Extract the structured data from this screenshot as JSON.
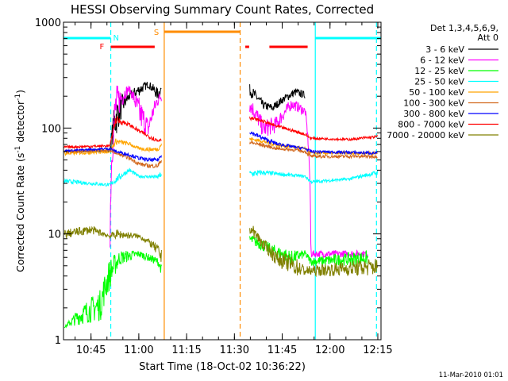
{
  "chart_data": {
    "type": "line",
    "title": "HESSI Observing Summary Count Rates, Corrected",
    "xlabel": "Start Time (18-Oct-02 10:36:22)",
    "ylabel_main": "Corrected Count Rate (s",
    "ylabel_sup1": "-1",
    "ylabel_mid": " detector",
    "ylabel_sup2": "-1",
    "ylabel_end": ")",
    "y_scale": "log",
    "ylim": [
      1,
      1000
    ],
    "xlim": [
      10.6061,
      12.2667
    ],
    "x_ticks": [
      {
        "t": 10.75,
        "label": "10:45"
      },
      {
        "t": 11.0,
        "label": "11:00"
      },
      {
        "t": 11.25,
        "label": "11:15"
      },
      {
        "t": 11.5,
        "label": "11:30"
      },
      {
        "t": 11.75,
        "label": "11:45"
      },
      {
        "t": 12.0,
        "label": "12:00"
      },
      {
        "t": 12.25,
        "label": "12:15"
      }
    ],
    "y_ticks": [
      {
        "v": 1,
        "label": "1"
      },
      {
        "v": 10,
        "label": "10"
      },
      {
        "v": 100,
        "label": "100"
      },
      {
        "v": 1000,
        "label": "1000"
      }
    ],
    "legend_title1": "Det 1,3,4,5,6,9,",
    "legend_title2": "Att 0",
    "series": [
      {
        "name": "3 - 6 keV",
        "color": "#000000",
        "values": [
          [
            10.61,
            [
              60,
              60
            ]
          ],
          [
            10.85,
            [
              60,
              60
            ]
          ],
          [
            10.88,
            [
              80,
              200
            ]
          ],
          [
            10.95,
            [
              180,
              220
            ]
          ],
          [
            11.0,
            [
              200,
              260
            ]
          ],
          [
            11.05,
            [
              240,
              280
            ]
          ],
          [
            11.1,
            [
              180,
              240
            ]
          ],
          [
            11.12,
            [
              220,
              260
            ]
          ],
          [
            11.58,
            [
              200,
              260
            ]
          ],
          [
            11.65,
            [
              150,
              180
            ]
          ],
          [
            11.7,
            [
              140,
              170
            ]
          ],
          [
            11.75,
            [
              170,
              200
            ]
          ],
          [
            11.82,
            [
              200,
              240
            ]
          ],
          [
            11.87,
            [
              190,
              220
            ]
          ]
        ]
      },
      {
        "name": "6 - 12 keV",
        "color": "#ff00ff",
        "values": [
          [
            10.85,
            [
              7,
              8
            ]
          ],
          [
            10.88,
            [
              100,
              260
            ]
          ],
          [
            10.95,
            [
              220,
              250
            ]
          ],
          [
            11.0,
            [
              100,
              200
            ]
          ],
          [
            11.05,
            [
              80,
              120
            ]
          ],
          [
            11.1,
            [
              160,
              220
            ]
          ],
          [
            11.12,
            [
              180,
              220
            ]
          ],
          [
            11.58,
            [
              140,
              200
            ]
          ],
          [
            11.65,
            [
              80,
              120
            ]
          ],
          [
            11.72,
            [
              90,
              130
            ]
          ],
          [
            11.8,
            [
              150,
              190
            ]
          ],
          [
            11.87,
            [
              130,
              160
            ]
          ],
          [
            11.9,
            [
              6,
              7
            ]
          ],
          [
            12.2,
            [
              6,
              7
            ]
          ]
        ]
      },
      {
        "name": "12 - 25 keV",
        "color": "#00ff00",
        "values": [
          [
            10.61,
            [
              1.3,
              1.3
            ]
          ],
          [
            10.8,
            [
              1.5,
              3
            ]
          ],
          [
            10.85,
            [
              3,
              6
            ]
          ],
          [
            10.9,
            [
              5,
              7
            ]
          ],
          [
            11.0,
            [
              6,
              7
            ]
          ],
          [
            11.1,
            [
              5,
              6
            ]
          ],
          [
            11.12,
            [
              4,
              5
            ]
          ],
          [
            11.58,
            [
              8,
              10
            ]
          ],
          [
            11.7,
            [
              6,
              8
            ]
          ],
          [
            11.8,
            [
              5,
              7
            ]
          ],
          [
            11.87,
            [
              6,
              7
            ]
          ],
          [
            11.9,
            [
              5,
              6
            ]
          ],
          [
            12.2,
            [
              5,
              7
            ]
          ]
        ]
      },
      {
        "name": "25 - 50 keV",
        "color": "#00ffff",
        "values": [
          [
            10.61,
            [
              30,
              33
            ]
          ],
          [
            10.85,
            [
              28,
              30
            ]
          ],
          [
            10.88,
            [
              30,
              35
            ]
          ],
          [
            10.95,
            [
              38,
              42
            ]
          ],
          [
            11.0,
            [
              34,
              36
            ]
          ],
          [
            11.1,
            [
              33,
              36
            ]
          ],
          [
            11.12,
            [
              34,
              40
            ]
          ],
          [
            11.58,
            [
              34,
              40
            ]
          ],
          [
            11.65,
            [
              36,
              40
            ]
          ],
          [
            11.75,
            [
              35,
              38
            ]
          ],
          [
            11.87,
            [
              34,
              36
            ]
          ],
          [
            11.9,
            [
              30,
              32
            ]
          ],
          [
            12.1,
            [
              32,
              34
            ]
          ],
          [
            12.25,
            [
              36,
              40
            ]
          ]
        ]
      },
      {
        "name": "50 - 100 keV",
        "color": "#ffa500",
        "values": [
          [
            10.61,
            [
              55,
              60
            ]
          ],
          [
            10.85,
            [
              58,
              62
            ]
          ],
          [
            10.88,
            [
              70,
              80
            ]
          ],
          [
            10.95,
            [
              68,
              74
            ]
          ],
          [
            11.0,
            [
              62,
              66
            ]
          ],
          [
            11.05,
            [
              60,
              66
            ]
          ],
          [
            11.1,
            [
              60,
              66
            ]
          ],
          [
            11.12,
            [
              68,
              74
            ]
          ],
          [
            11.58,
            [
              76,
              82
            ]
          ],
          [
            11.65,
            [
              72,
              78
            ]
          ],
          [
            11.72,
            [
              66,
              72
            ]
          ],
          [
            11.82,
            [
              64,
              68
            ]
          ],
          [
            11.87,
            [
              62,
              66
            ]
          ],
          [
            11.9,
            [
              56,
              60
            ]
          ],
          [
            12.25,
            [
              56,
              60
            ]
          ]
        ]
      },
      {
        "name": "100 - 300 keV",
        "color": "#d2691e",
        "values": [
          [
            10.61,
            [
              58,
              62
            ]
          ],
          [
            10.85,
            [
              60,
              64
            ]
          ],
          [
            10.88,
            [
              56,
              60
            ]
          ],
          [
            10.95,
            [
              50,
              54
            ]
          ],
          [
            11.0,
            [
              44,
              48
            ]
          ],
          [
            11.05,
            [
              42,
              46
            ]
          ],
          [
            11.1,
            [
              42,
              46
            ]
          ],
          [
            11.12,
            [
              48,
              52
            ]
          ],
          [
            11.58,
            [
              70,
              76
            ]
          ],
          [
            11.65,
            [
              66,
              72
            ]
          ],
          [
            11.72,
            [
              62,
              66
            ]
          ],
          [
            11.82,
            [
              60,
              64
            ]
          ],
          [
            11.87,
            [
              58,
              62
            ]
          ],
          [
            11.9,
            [
              52,
              56
            ]
          ],
          [
            12.25,
            [
              52,
              56
            ]
          ]
        ]
      },
      {
        "name": "300 - 800 keV",
        "color": "#0000ff",
        "values": [
          [
            10.61,
            [
              60,
              62
            ]
          ],
          [
            10.85,
            [
              62,
              66
            ]
          ],
          [
            10.88,
            [
              58,
              62
            ]
          ],
          [
            10.95,
            [
              54,
              58
            ]
          ],
          [
            11.0,
            [
              50,
              54
            ]
          ],
          [
            11.05,
            [
              48,
              52
            ]
          ],
          [
            11.1,
            [
              48,
              52
            ]
          ],
          [
            11.12,
            [
              54,
              58
            ]
          ],
          [
            11.58,
            [
              88,
              96
            ]
          ],
          [
            11.65,
            [
              76,
              84
            ]
          ],
          [
            11.72,
            [
              68,
              74
            ]
          ],
          [
            11.82,
            [
              64,
              68
            ]
          ],
          [
            11.87,
            [
              62,
              66
            ]
          ],
          [
            11.9,
            [
              58,
              62
            ]
          ],
          [
            12.25,
            [
              56,
              60
            ]
          ]
        ]
      },
      {
        "name": "800 - 7000 keV",
        "color": "#ff0000",
        "values": [
          [
            10.61,
            [
              64,
              68
            ]
          ],
          [
            10.85,
            [
              66,
              70
            ]
          ],
          [
            10.88,
            [
              110,
              130
            ]
          ],
          [
            10.95,
            [
              104,
              112
            ]
          ],
          [
            11.0,
            [
              90,
              98
            ]
          ],
          [
            11.05,
            [
              80,
              88
            ]
          ],
          [
            11.1,
            [
              72,
              80
            ]
          ],
          [
            11.12,
            [
              76,
              84
            ]
          ],
          [
            11.58,
            [
              120,
              130
            ]
          ],
          [
            11.65,
            [
              112,
              120
            ]
          ],
          [
            11.72,
            [
              100,
              108
            ]
          ],
          [
            11.82,
            [
              90,
              96
            ]
          ],
          [
            11.87,
            [
              84,
              90
            ]
          ],
          [
            11.9,
            [
              78,
              82
            ]
          ],
          [
            12.1,
            [
              76,
              80
            ]
          ],
          [
            12.25,
            [
              80,
              86
            ]
          ]
        ]
      },
      {
        "name": "7000 - 20000 keV",
        "color": "#808000",
        "values": [
          [
            10.61,
            [
              9,
              11
            ]
          ],
          [
            10.75,
            [
              10,
              12
            ]
          ],
          [
            10.85,
            [
              9,
              10
            ]
          ],
          [
            10.88,
            [
              9,
              11
            ]
          ],
          [
            11.0,
            [
              9,
              10
            ]
          ],
          [
            11.05,
            [
              8,
              9
            ]
          ],
          [
            11.1,
            [
              6,
              8
            ]
          ],
          [
            11.12,
            [
              5,
              7
            ]
          ],
          [
            11.58,
            [
              10,
              13
            ]
          ],
          [
            11.65,
            [
              7,
              9
            ]
          ],
          [
            11.72,
            [
              5,
              7
            ]
          ],
          [
            11.82,
            [
              4,
              6
            ]
          ],
          [
            11.87,
            [
              4,
              5
            ]
          ],
          [
            11.9,
            [
              4,
              5
            ]
          ],
          [
            12.25,
            [
              4,
              6
            ]
          ]
        ]
      }
    ],
    "flags": {
      "n_label": "N",
      "s_label": "S",
      "f_label": "F",
      "night_color": "#00ffff",
      "saa_color": "#ff8c00",
      "flare_color": "#ff0000",
      "night_bars": [
        [
          10.6061,
          10.8533
        ],
        [
          11.923,
          12.2667
        ]
      ],
      "night_edges": [
        [
          10.8533,
          "dashed"
        ],
        [
          11.923,
          "solid"
        ],
        [
          12.243,
          "dashed"
        ]
      ],
      "saa_bars": [
        [
          11.133,
          11.53
        ]
      ],
      "saa_edges": [
        [
          11.133,
          "solid"
        ],
        [
          11.53,
          "dashed"
        ]
      ],
      "flare_bars": [
        [
          10.8533,
          11.083
        ],
        [
          11.557,
          11.577
        ],
        [
          11.683,
          11.883
        ]
      ]
    },
    "grid": false,
    "legend_position": "right"
  },
  "footer": {
    "date_stamp": "11-Mar-2010 01:01"
  }
}
